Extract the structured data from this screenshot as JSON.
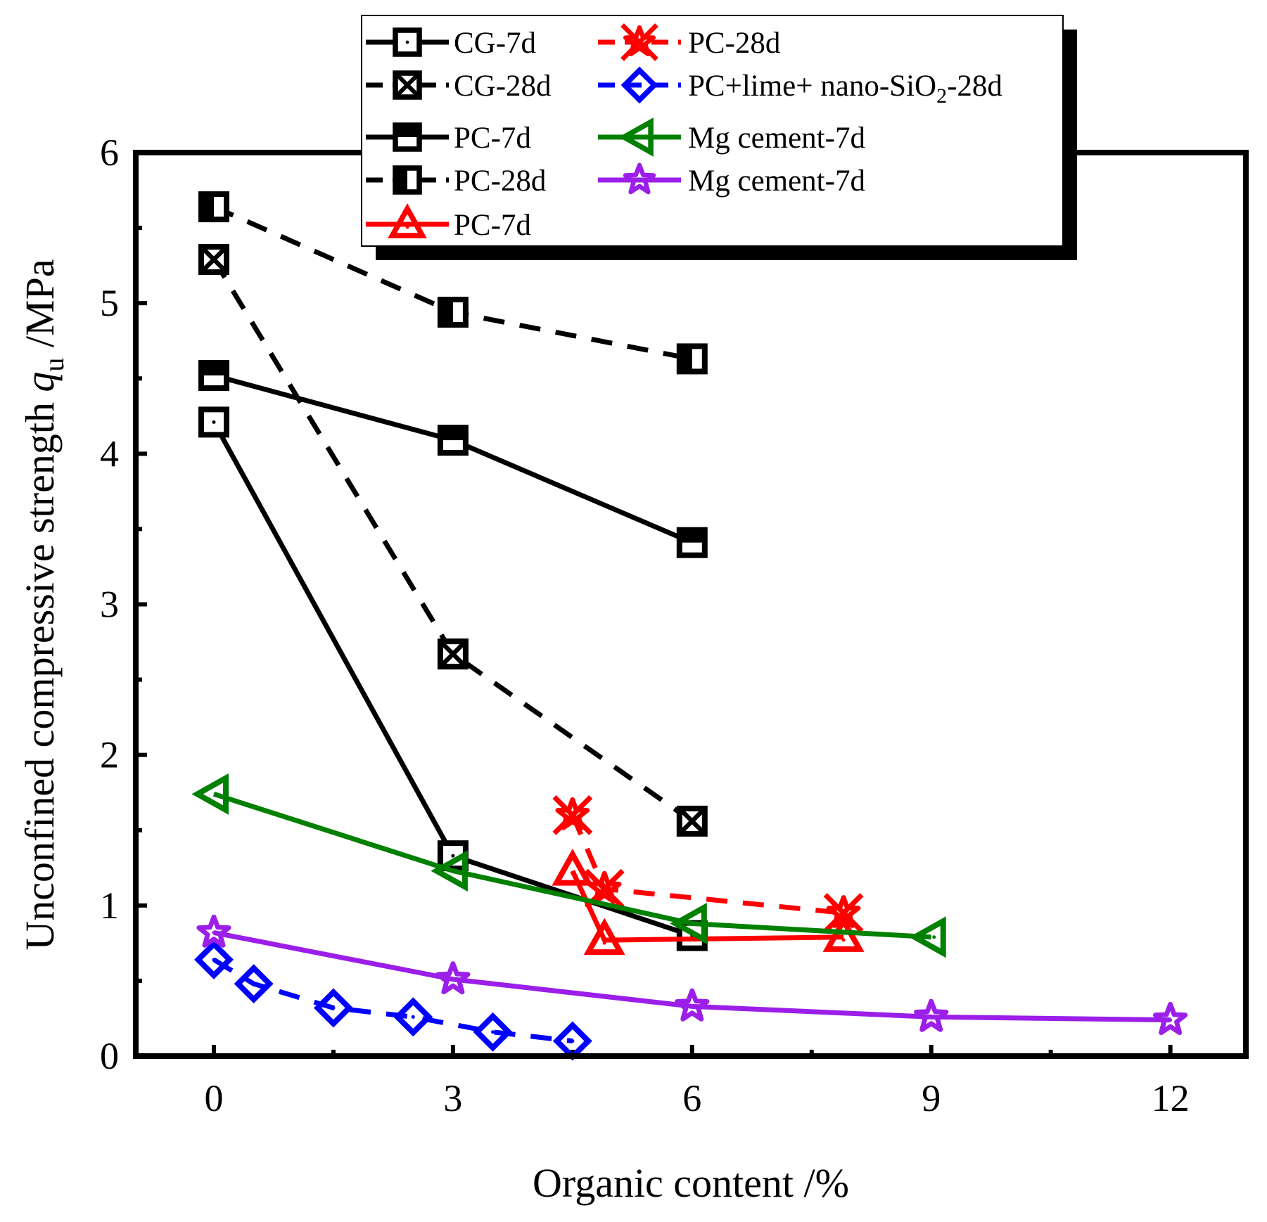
{
  "chart_data": {
    "type": "line",
    "title": "",
    "xlabel": "Organic content /%",
    "ylabel": {
      "prefix": "Unconfined compressive strength ",
      "symbol": "q",
      "subscript": "u",
      "suffix": " /MPa"
    },
    "xlim": [
      -1,
      13
    ],
    "ylim": [
      0,
      6
    ],
    "xticks": [
      0,
      3,
      6,
      9,
      12
    ],
    "yticks": [
      0,
      1,
      2,
      3,
      4,
      5,
      6
    ],
    "legend_position": "top-center",
    "series": [
      {
        "name": "CG-7d",
        "color": "#000000",
        "line": "solid",
        "marker": "square-dot",
        "x": [
          0,
          3,
          6
        ],
        "y": [
          4.21,
          1.33,
          0.8
        ]
      },
      {
        "name": "CG-28d",
        "color": "#000000",
        "line": "dashed",
        "marker": "square-x",
        "x": [
          0,
          3,
          6
        ],
        "y": [
          5.29,
          2.67,
          1.56
        ]
      },
      {
        "name": "PC-7d",
        "color": "#000000",
        "line": "solid",
        "marker": "square-top-half",
        "x": [
          0,
          3,
          6
        ],
        "y": [
          4.52,
          4.09,
          3.41
        ]
      },
      {
        "name": "PC-28d",
        "color": "#000000",
        "line": "dashed",
        "marker": "square-left-half",
        "x": [
          0,
          3,
          6
        ],
        "y": [
          5.64,
          4.94,
          4.63
        ]
      },
      {
        "name": "PC-7d",
        "color": "#ff0000",
        "line": "solid",
        "marker": "triangle-dot",
        "x": [
          4.5,
          4.9,
          7.9
        ],
        "y": [
          1.23,
          0.77,
          0.79
        ]
      },
      {
        "name": "PC-28d",
        "color": "#ff0000",
        "line": "dashed",
        "marker": "star-x",
        "x": [
          4.5,
          4.9,
          7.9
        ],
        "y": [
          1.6,
          1.11,
          0.95
        ]
      },
      {
        "name": "PC+lime+ nano-SiO",
        "name_sub": "2",
        "name_suffix": "-28d",
        "color": "#0000ff",
        "line": "dashed",
        "marker": "diamond-dot",
        "x": [
          0,
          0.5,
          1.5,
          2.5,
          3.5,
          4.5
        ],
        "y": [
          0.64,
          0.48,
          0.32,
          0.26,
          0.16,
          0.1
        ]
      },
      {
        "name": "Mg cement-7d",
        "color": "#008000",
        "line": "solid",
        "marker": "left-triangle-dot",
        "x": [
          0,
          3,
          6,
          9
        ],
        "y": [
          1.74,
          1.23,
          0.88,
          0.79
        ]
      },
      {
        "name": "Mg cement-7d",
        "color": "#9b1fe8",
        "line": "solid",
        "marker": "star-dot",
        "x": [
          0,
          3,
          6,
          9,
          12
        ],
        "y": [
          0.82,
          0.51,
          0.33,
          0.26,
          0.24
        ]
      }
    ]
  }
}
